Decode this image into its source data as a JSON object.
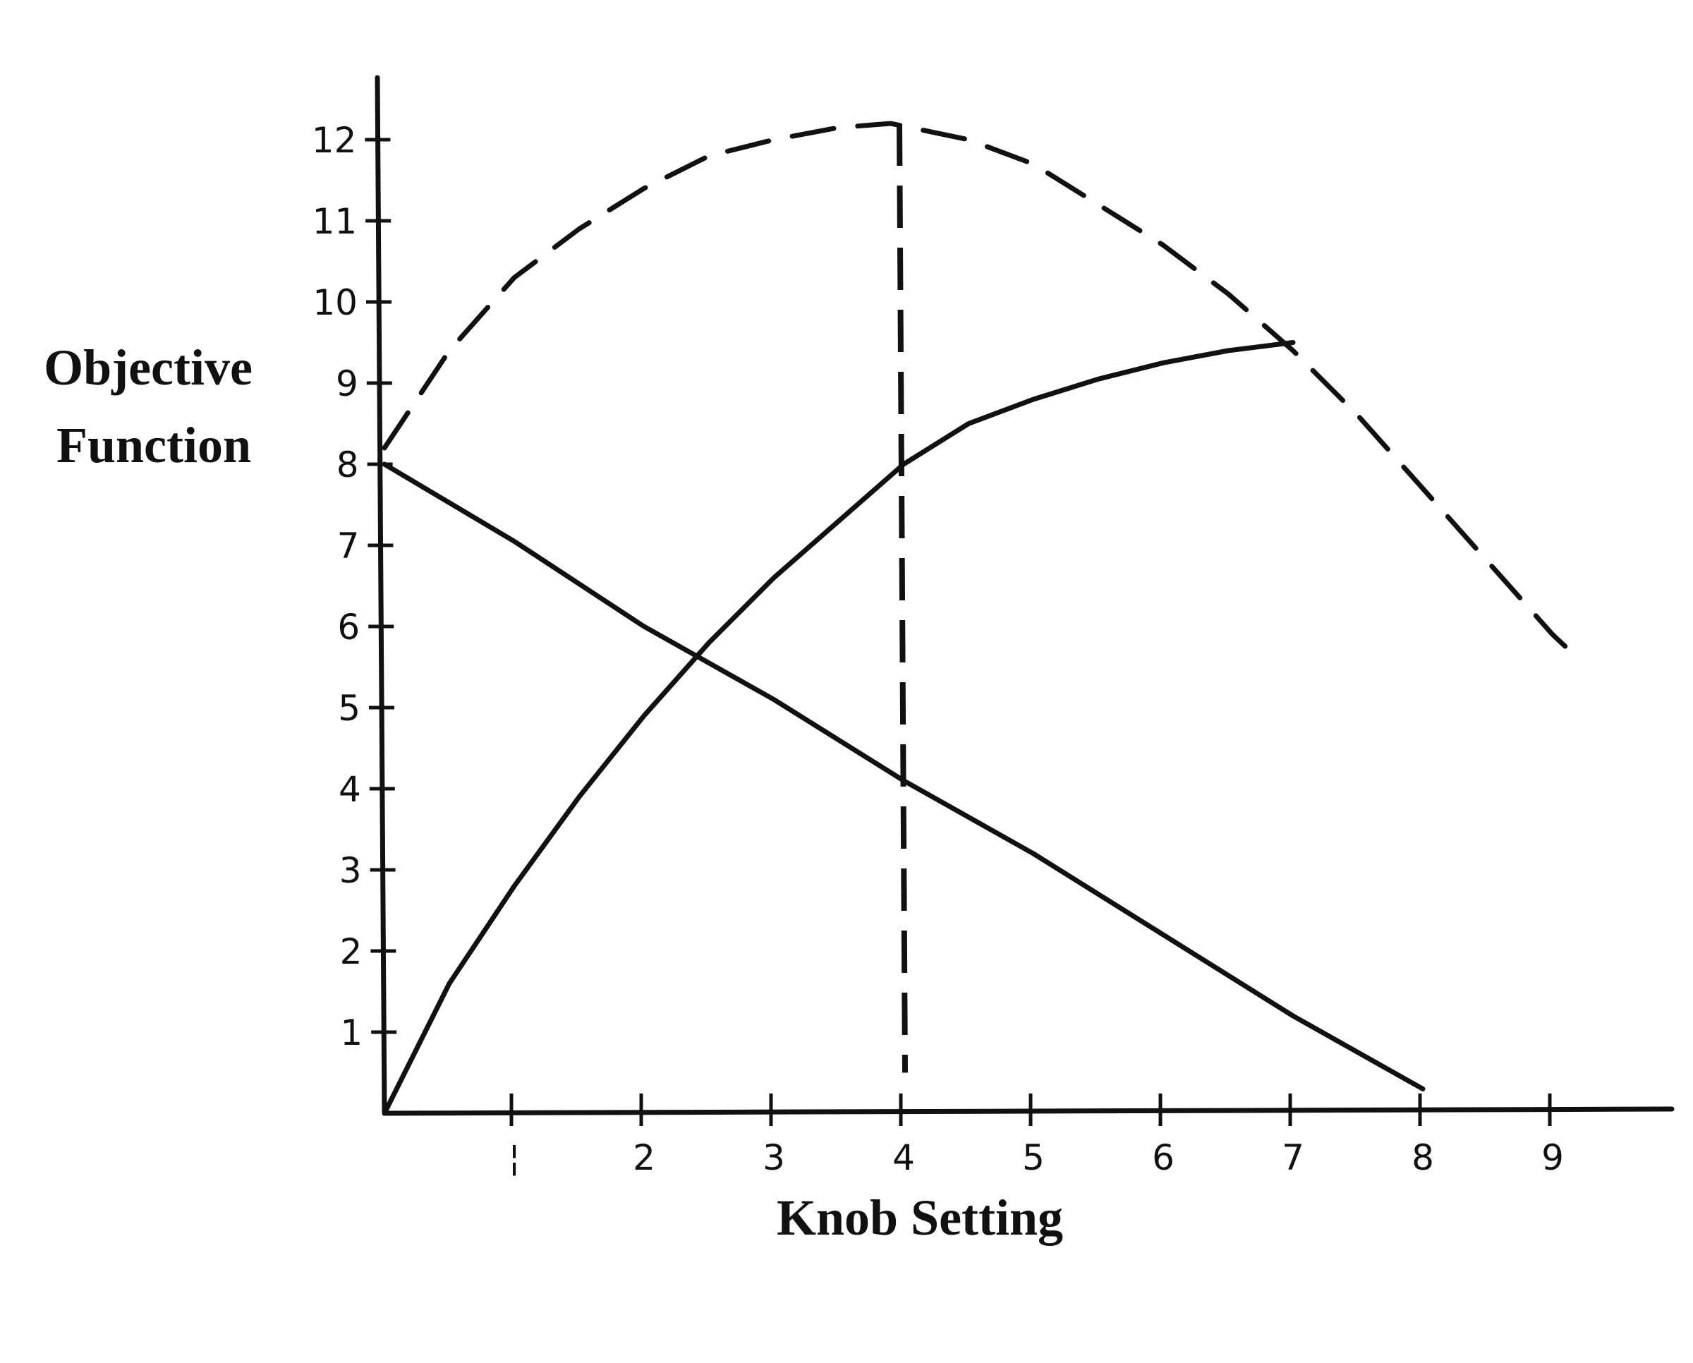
{
  "chart_data": {
    "type": "line",
    "title": "",
    "xlabel": "Knob Setting",
    "ylabel_lines": [
      "Objective",
      "Function"
    ],
    "xlim": [
      0,
      10
    ],
    "ylim": [
      0,
      12.5
    ],
    "x_ticks": [
      1,
      2,
      3,
      4,
      5,
      6,
      7,
      8,
      9
    ],
    "x_tick_labels": [
      "¦",
      "2",
      "3",
      "4",
      "5",
      "6",
      "7",
      "8",
      "9"
    ],
    "y_ticks": [
      1,
      2,
      3,
      4,
      5,
      6,
      7,
      8,
      9,
      10,
      11,
      12
    ],
    "y_tick_labels": [
      "1",
      "2",
      "3",
      "4",
      "5",
      "6",
      "7",
      "8",
      "9",
      "10",
      "11",
      "12"
    ],
    "grid": false,
    "legend": "none",
    "series": [
      {
        "style": "dashed",
        "points": [
          [
            0,
            8.2
          ],
          [
            0.5,
            9.4
          ],
          [
            1,
            10.3
          ],
          [
            1.5,
            10.9
          ],
          [
            2,
            11.4
          ],
          [
            2.5,
            11.8
          ],
          [
            3,
            12.0
          ],
          [
            3.5,
            12.15
          ],
          [
            3.9,
            12.2
          ],
          [
            4.5,
            12.0
          ],
          [
            5,
            11.7
          ],
          [
            5.5,
            11.2
          ],
          [
            6,
            10.7
          ],
          [
            6.5,
            10.1
          ],
          [
            7,
            9.4
          ],
          [
            7.5,
            8.6
          ],
          [
            8,
            7.7
          ],
          [
            8.5,
            6.8
          ],
          [
            9,
            5.9
          ],
          [
            9.2,
            5.6
          ]
        ]
      },
      {
        "style": "solid",
        "points": [
          [
            0,
            0
          ],
          [
            0.5,
            1.6
          ],
          [
            1,
            2.8
          ],
          [
            1.5,
            3.9
          ],
          [
            2,
            4.9
          ],
          [
            2.5,
            5.8
          ],
          [
            3,
            6.6
          ],
          [
            3.5,
            7.3
          ],
          [
            4,
            8.0
          ],
          [
            4.5,
            8.5
          ],
          [
            5,
            8.8
          ],
          [
            5.5,
            9.05
          ],
          [
            6,
            9.25
          ],
          [
            6.5,
            9.4
          ],
          [
            7,
            9.5
          ]
        ]
      },
      {
        "style": "solid",
        "points": [
          [
            0,
            8.0
          ],
          [
            1,
            7.05
          ],
          [
            2,
            6.0
          ],
          [
            3,
            5.1
          ],
          [
            4,
            4.1
          ],
          [
            5,
            3.2
          ],
          [
            6,
            2.2
          ],
          [
            7,
            1.2
          ],
          [
            8,
            0.3
          ]
        ]
      }
    ],
    "reference_lines": [
      {
        "axis": "x",
        "value": 4,
        "from": 0.5,
        "to": 12.2,
        "style": "dashed"
      }
    ]
  }
}
